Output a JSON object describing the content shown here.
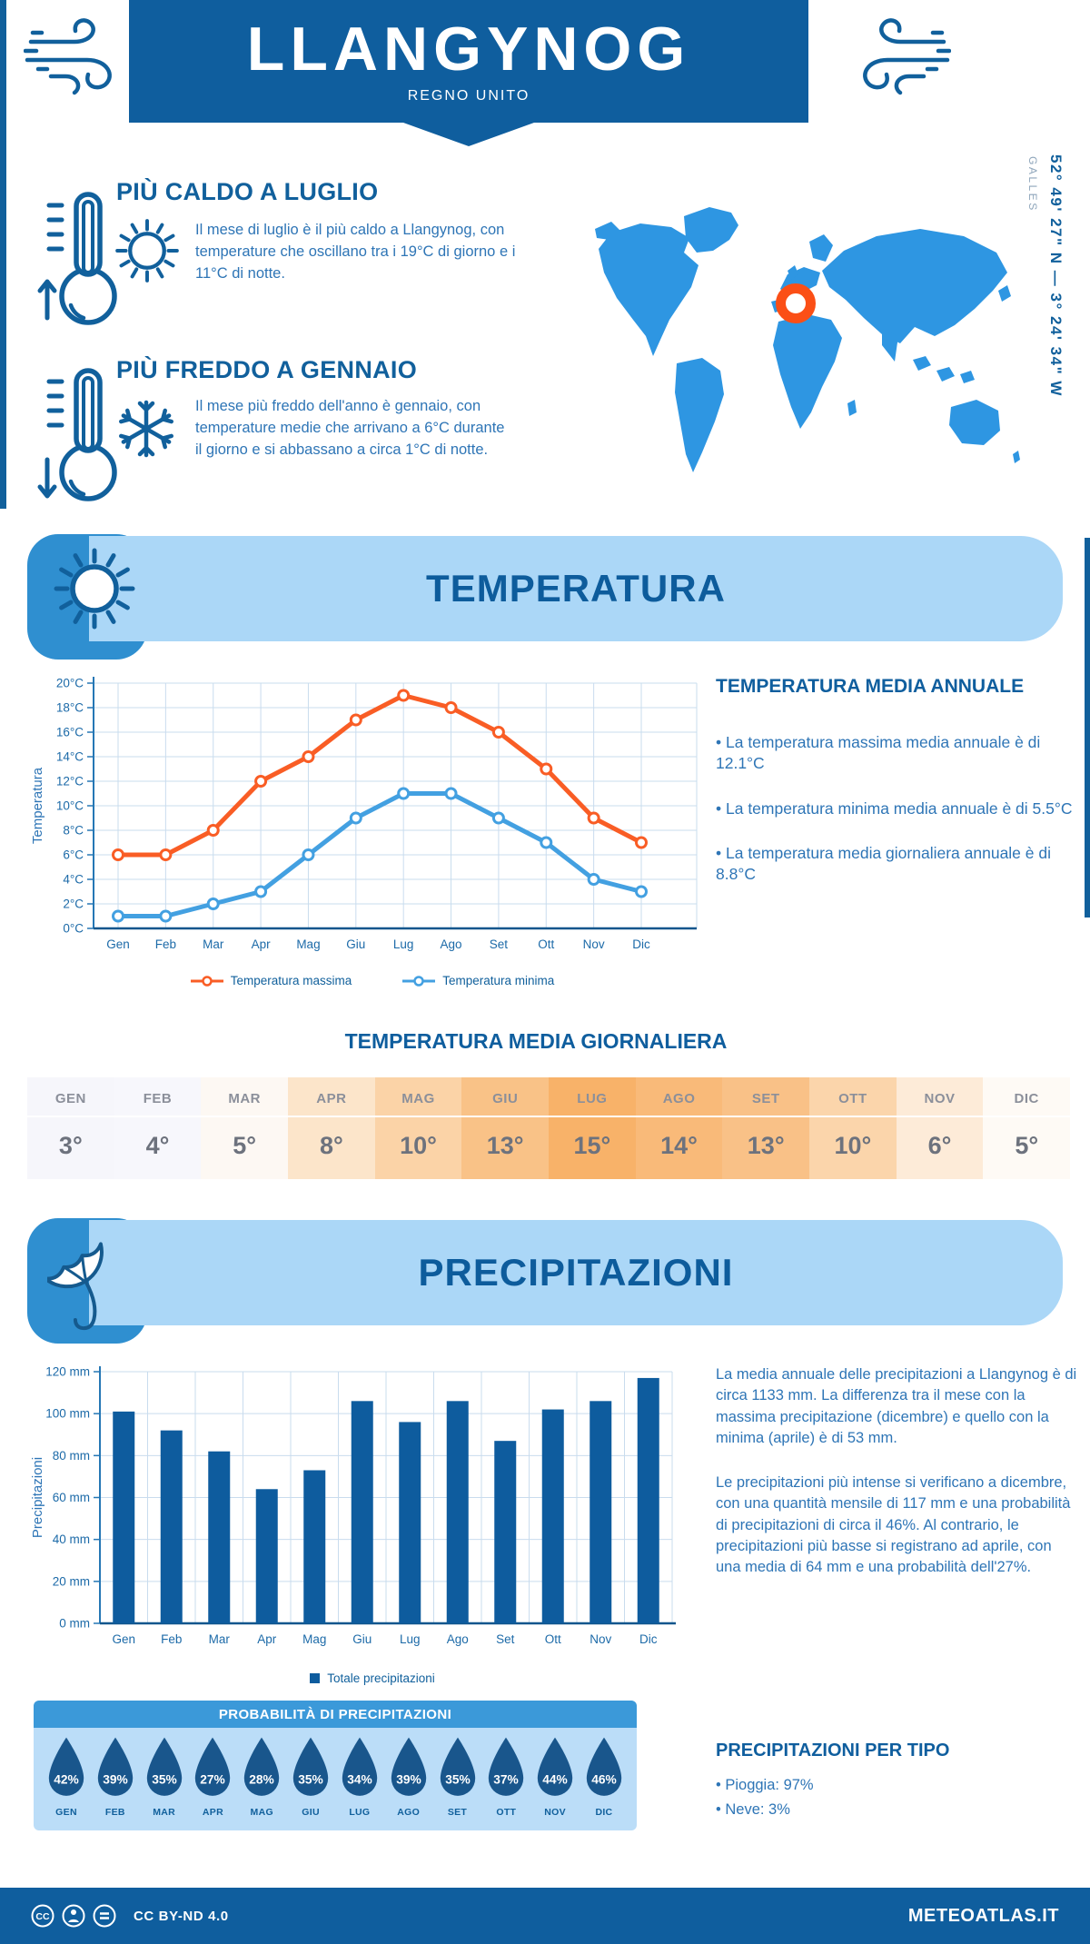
{
  "header": {
    "title": "LLANGYNOG",
    "subtitle": "REGNO UNITO"
  },
  "location": {
    "coordinates": "52° 49' 27\" N — 3° 24' 34\" W",
    "region": "GALLES"
  },
  "highlights": {
    "warm": {
      "title": "PIÙ CALDO A LUGLIO",
      "text": "Il mese di luglio è il più caldo a Llangynog, con temperature che oscillano tra i 19°C di giorno e i 11°C di notte."
    },
    "cold": {
      "title": "PIÙ FREDDO A GENNAIO",
      "text": "Il mese più freddo dell'anno è gennaio, con temperature medie che arrivano a 6°C durante il giorno e si abbassano a circa 1°C di notte."
    }
  },
  "temperature": {
    "banner": "TEMPERATURA",
    "annual": {
      "heading": "TEMPERATURA MEDIA ANNUALE",
      "bullets": [
        "• La temperatura massima media annuale è di 12.1°C",
        "• La temperatura minima media annuale è di 5.5°C",
        "• La temperatura media giornaliera annuale è di 8.8°C"
      ]
    },
    "daily_heading": "TEMPERATURA MEDIA GIORNALIERA"
  },
  "precipitation": {
    "banner": "PRECIPITAZIONI",
    "paragraphs": [
      "La media annuale delle precipitazioni a Llangynog è di circa 1133 mm. La differenza tra il mese con la massima precipitazione (dicembre) e quello con la minima (aprile) è di 53 mm.",
      "Le precipitazioni più intense si verificano a dicembre, con una quantità mensile di 117 mm e una probabilità di precipitazioni di circa il 46%. Al contrario, le precipitazioni più basse si registrano ad aprile, con una media di 64 mm e una probabilità dell'27%."
    ],
    "probability_title": "PROBABILITÀ DI PRECIPITAZIONI",
    "type": {
      "heading": "PRECIPITAZIONI PER TIPO",
      "bullets": [
        "• Pioggia: 97%",
        "• Neve: 3%"
      ]
    }
  },
  "footer": {
    "license": "CC BY-ND 4.0",
    "brand": "METEOATLAS.IT"
  },
  "colors": {
    "accent_orange": "#f95d25",
    "accent_blue": "#43a0e1",
    "bar_blue": "#0e5c9e",
    "banner_blue": "#0f5e9e",
    "light_blue": "#abd7f7",
    "mid_blue": "#2f8fd0",
    "map_blue": "#2e96e2",
    "marker_orange": "#fb4f16",
    "drop_blue": "#19568c"
  },
  "chart_data": [
    {
      "type": "line",
      "title": "Temperatura massima e minima mensile",
      "categories": [
        "Gen",
        "Feb",
        "Mar",
        "Apr",
        "Mag",
        "Giu",
        "Lug",
        "Ago",
        "Set",
        "Ott",
        "Nov",
        "Dic"
      ],
      "series": [
        {
          "name": "Temperatura massima",
          "color": "#f95d25",
          "values": [
            6,
            6,
            8,
            12,
            14,
            17,
            19,
            18,
            16,
            13,
            9,
            7
          ]
        },
        {
          "name": "Temperatura minima",
          "color": "#43a0e1",
          "values": [
            1,
            1,
            2,
            3,
            6,
            9,
            11,
            11,
            9,
            7,
            4,
            3
          ]
        }
      ],
      "xlabel": "",
      "ylabel": "Temperatura",
      "ylim": [
        0,
        20
      ],
      "ytick_step": 2,
      "unit": "°C",
      "grid": true,
      "legend_position": "bottom"
    },
    {
      "type": "table",
      "title": "TEMPERATURA MEDIA GIORNALIERA",
      "columns": [
        "GEN",
        "FEB",
        "MAR",
        "APR",
        "MAG",
        "GIU",
        "LUG",
        "AGO",
        "SET",
        "OTT",
        "NOV",
        "DIC"
      ],
      "values": [
        "3°",
        "4°",
        "5°",
        "8°",
        "10°",
        "13°",
        "15°",
        "14°",
        "13°",
        "10°",
        "6°",
        "5°"
      ],
      "cell_colors": [
        "#f6f6fb",
        "#f7f7fc",
        "#fdf8f3",
        "#fce5ca",
        "#fbd3a7",
        "#f9c287",
        "#f8b269",
        "#f9ba79",
        "#f9c187",
        "#fbd5ab",
        "#fdebd8",
        "#fefaf5"
      ]
    },
    {
      "type": "bar",
      "title": "Totale precipitazioni mensili",
      "categories": [
        "Gen",
        "Feb",
        "Mar",
        "Apr",
        "Mag",
        "Giu",
        "Lug",
        "Ago",
        "Set",
        "Ott",
        "Nov",
        "Dic"
      ],
      "values": [
        101,
        92,
        82,
        64,
        73,
        106,
        96,
        106,
        87,
        102,
        106,
        117
      ],
      "xlabel": "",
      "ylabel": "Precipitazioni",
      "ylim": [
        0,
        120
      ],
      "ytick_step": 20,
      "unit": " mm",
      "legend": "Totale precipitazioni",
      "bar_color": "#0e5c9e",
      "grid": true,
      "legend_position": "bottom"
    },
    {
      "type": "pictogram",
      "title": "PROBABILITÀ DI PRECIPITAZIONI",
      "categories": [
        "GEN",
        "FEB",
        "MAR",
        "APR",
        "MAG",
        "GIU",
        "LUG",
        "AGO",
        "SET",
        "OTT",
        "NOV",
        "DIC"
      ],
      "values": [
        42,
        39,
        35,
        27,
        28,
        35,
        34,
        39,
        35,
        37,
        44,
        46
      ],
      "unit": "%"
    }
  ]
}
